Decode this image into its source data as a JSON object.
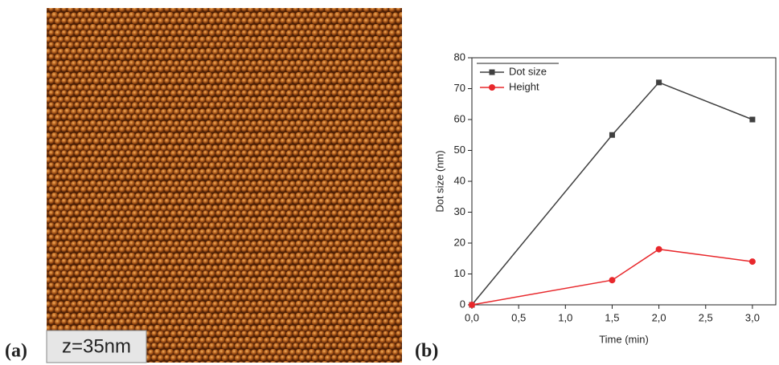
{
  "panel_a": {
    "label": "(a)",
    "scale_label": "z=35nm"
  },
  "panel_b": {
    "label": "(b)"
  },
  "chart_data": {
    "type": "line",
    "x_label": "Time (min)",
    "y_label": "Dot size (nm)",
    "x": [
      0,
      1.5,
      2,
      3
    ],
    "series": [
      {
        "name": "Dot size",
        "color": "#404040",
        "marker": "square",
        "values": [
          0,
          55,
          72,
          60
        ]
      },
      {
        "name": "Height",
        "color": "#e8282c",
        "marker": "circle",
        "values": [
          0,
          8,
          18,
          14
        ]
      }
    ],
    "xlim": [
      0,
      3.25
    ],
    "ylim": [
      0,
      80
    ],
    "xticks": [
      {
        "value": 0,
        "label": "0,0"
      },
      {
        "value": 0.5,
        "label": "0,5"
      },
      {
        "value": 1,
        "label": "1,0"
      },
      {
        "value": 1.5,
        "label": "1,5"
      },
      {
        "value": 2,
        "label": "2,0"
      },
      {
        "value": 2.5,
        "label": "2,5"
      },
      {
        "value": 3,
        "label": "3,0"
      }
    ],
    "yticks": [
      0,
      10,
      20,
      30,
      40,
      50,
      60,
      70,
      80
    ],
    "legend": "upper-left",
    "grid": false
  }
}
